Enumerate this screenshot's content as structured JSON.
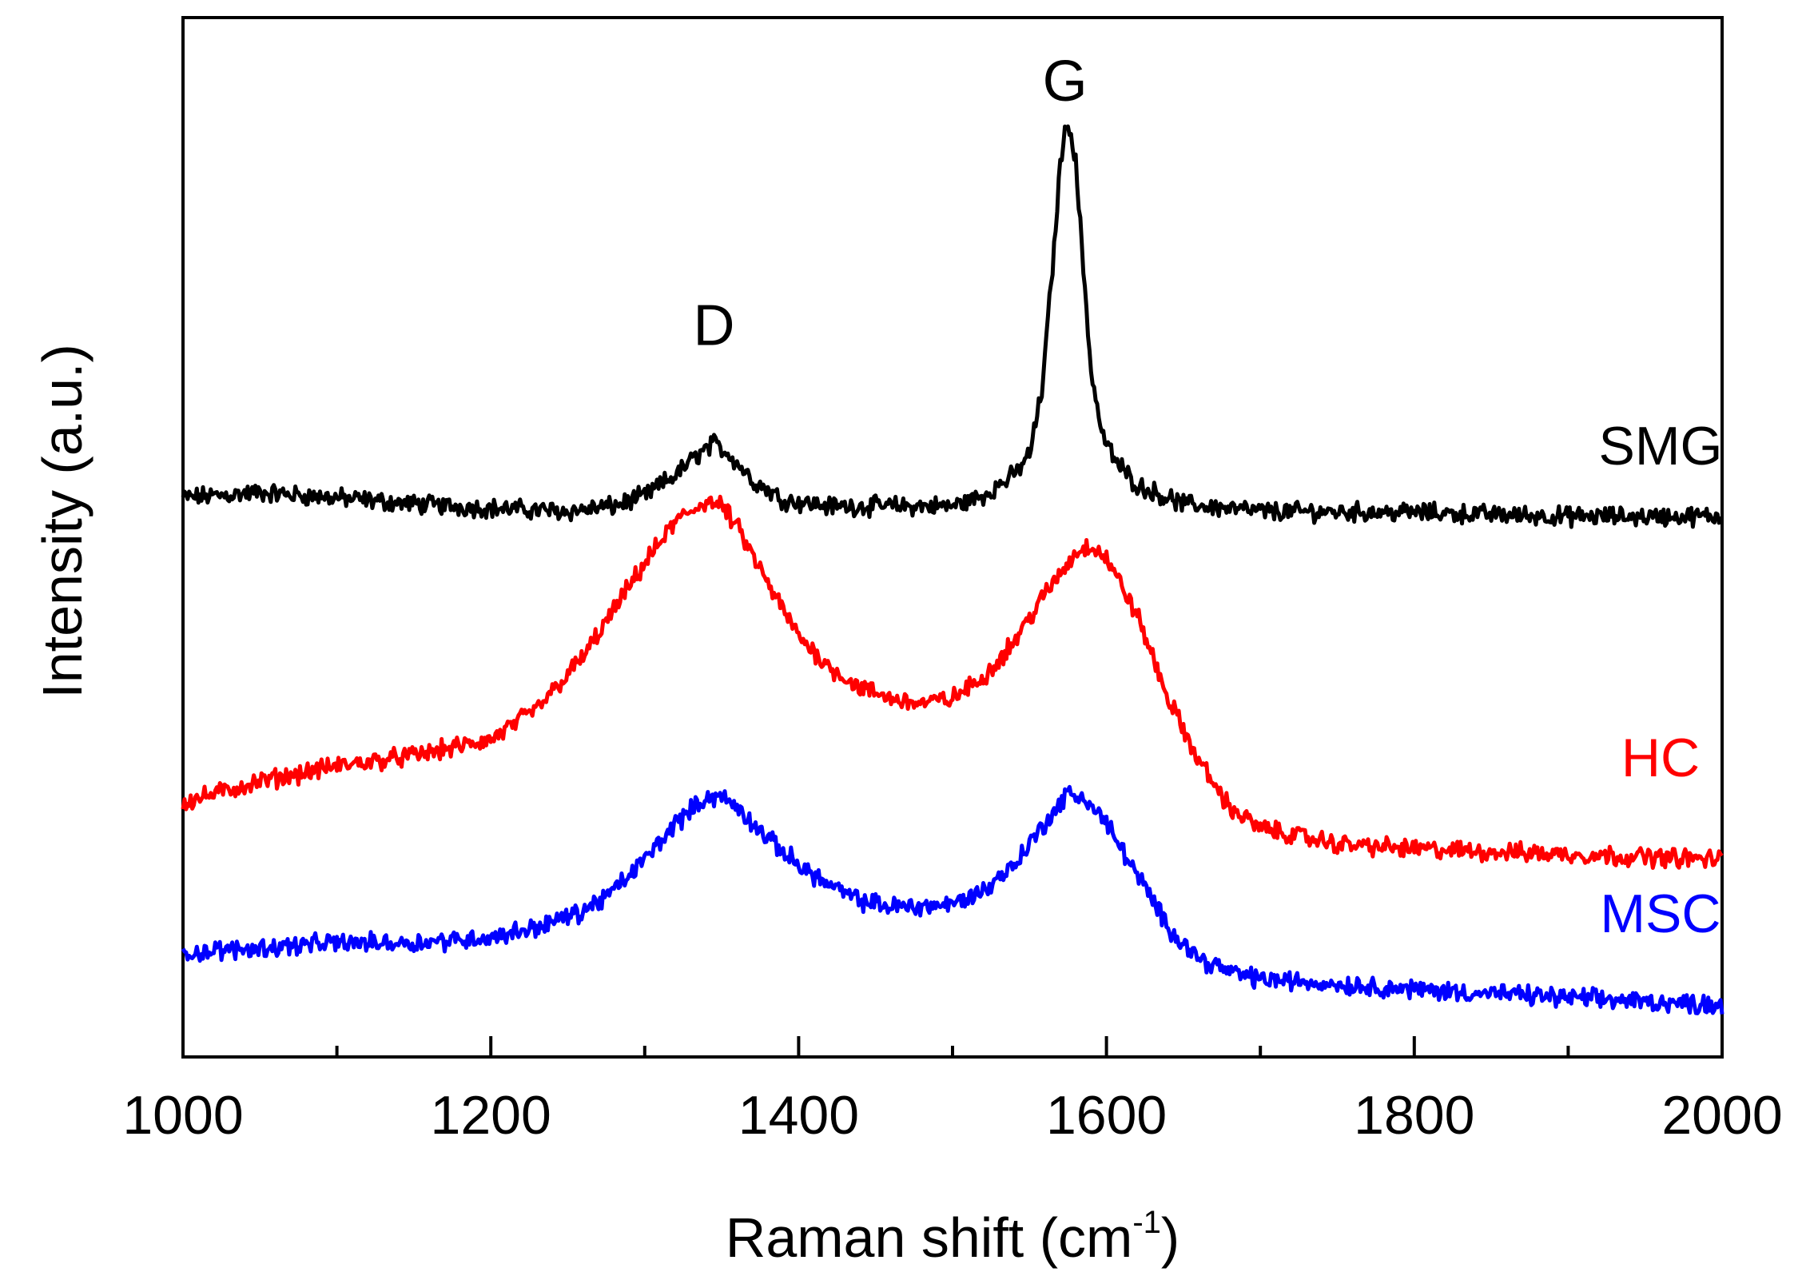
{
  "chart_data": {
    "type": "line",
    "title": "",
    "xlabel": "Raman shift (cm",
    "xlabel_superscript": "-1",
    "xlabel_suffix": ")",
    "ylabel": "Intensity (a.u.)",
    "xlim": [
      1000,
      2000
    ],
    "ylim": [
      0,
      100
    ],
    "x_major_ticks": [
      1000,
      1200,
      1400,
      1600,
      1800,
      2000
    ],
    "x_tick_labels": [
      "1000",
      "1200",
      "1400",
      "1600",
      "1800",
      "2000"
    ],
    "x_minor_ticks": [
      1100,
      1300,
      1500,
      1700,
      1900
    ],
    "y_tick_labels_shown": false,
    "grid": false,
    "annotations": [
      {
        "text": "D",
        "x": 1345,
        "y": 68.5
      },
      {
        "text": "G",
        "x": 1573,
        "y": 92
      }
    ],
    "series": [
      {
        "name": "SMG",
        "color": "#000000",
        "label_x": 1960,
        "label_y": 57,
        "x": [
          1000,
          1050,
          1100,
          1150,
          1200,
          1250,
          1280,
          1300,
          1320,
          1335,
          1345,
          1355,
          1370,
          1390,
          1420,
          1460,
          1500,
          1520,
          1540,
          1550,
          1558,
          1565,
          1570,
          1575,
          1580,
          1585,
          1590,
          1597,
          1605,
          1620,
          1650,
          1700,
          1800,
          1900,
          2000
        ],
        "values": [
          53.8,
          54.3,
          53.8,
          53.2,
          52.8,
          52.5,
          53.0,
          54.0,
          56.0,
          58.0,
          59.0,
          58.0,
          55.5,
          53.6,
          53.0,
          53.0,
          53.0,
          54.0,
          56.0,
          58.0,
          64.0,
          76.0,
          86.0,
          90.5,
          86.0,
          76.0,
          66.0,
          60.0,
          57.5,
          55.0,
          53.2,
          52.5,
          52.4,
          52.0,
          52.0
        ]
      },
      {
        "name": "HC",
        "color": "#ff0000",
        "label_x": 1960,
        "label_y": 27,
        "x": [
          1000,
          1050,
          1100,
          1150,
          1200,
          1230,
          1260,
          1280,
          1300,
          1320,
          1340,
          1350,
          1360,
          1380,
          1400,
          1420,
          1440,
          1460,
          1480,
          1500,
          1520,
          1540,
          1560,
          1580,
          1590,
          1600,
          1620,
          1640,
          1660,
          1680,
          1700,
          1750,
          1800,
          1900,
          2000
        ],
        "values": [
          24.5,
          26.5,
          28.0,
          29.0,
          30.5,
          33.5,
          38.5,
          43.0,
          47.5,
          51.5,
          53.5,
          53.0,
          51.0,
          45.5,
          40.5,
          37.5,
          35.5,
          34.5,
          34.0,
          34.5,
          36.5,
          40.0,
          44.5,
          48.5,
          49.3,
          48.0,
          42.5,
          34.5,
          28.5,
          24.0,
          22.0,
          20.5,
          20.0,
          19.5,
          19.0
        ]
      },
      {
        "name": "MSC",
        "color": "#0000ff",
        "label_x": 1960,
        "label_y": 12,
        "x": [
          1000,
          1050,
          1100,
          1150,
          1200,
          1230,
          1260,
          1280,
          1300,
          1320,
          1340,
          1350,
          1360,
          1380,
          1400,
          1420,
          1440,
          1460,
          1480,
          1500,
          1520,
          1540,
          1560,
          1575,
          1585,
          1600,
          1620,
          1640,
          1660,
          1680,
          1700,
          1750,
          1800,
          1900,
          2000
        ],
        "values": [
          10.0,
          10.5,
          11.0,
          11.0,
          11.5,
          12.5,
          14.0,
          16.0,
          19.0,
          22.5,
          25.0,
          25.0,
          24.0,
          21.0,
          18.5,
          16.5,
          15.0,
          14.5,
          14.5,
          14.7,
          16.0,
          18.5,
          22.5,
          25.3,
          25.0,
          22.5,
          17.5,
          12.5,
          9.5,
          8.2,
          7.5,
          7.0,
          6.5,
          5.7,
          5.0
        ]
      }
    ]
  }
}
